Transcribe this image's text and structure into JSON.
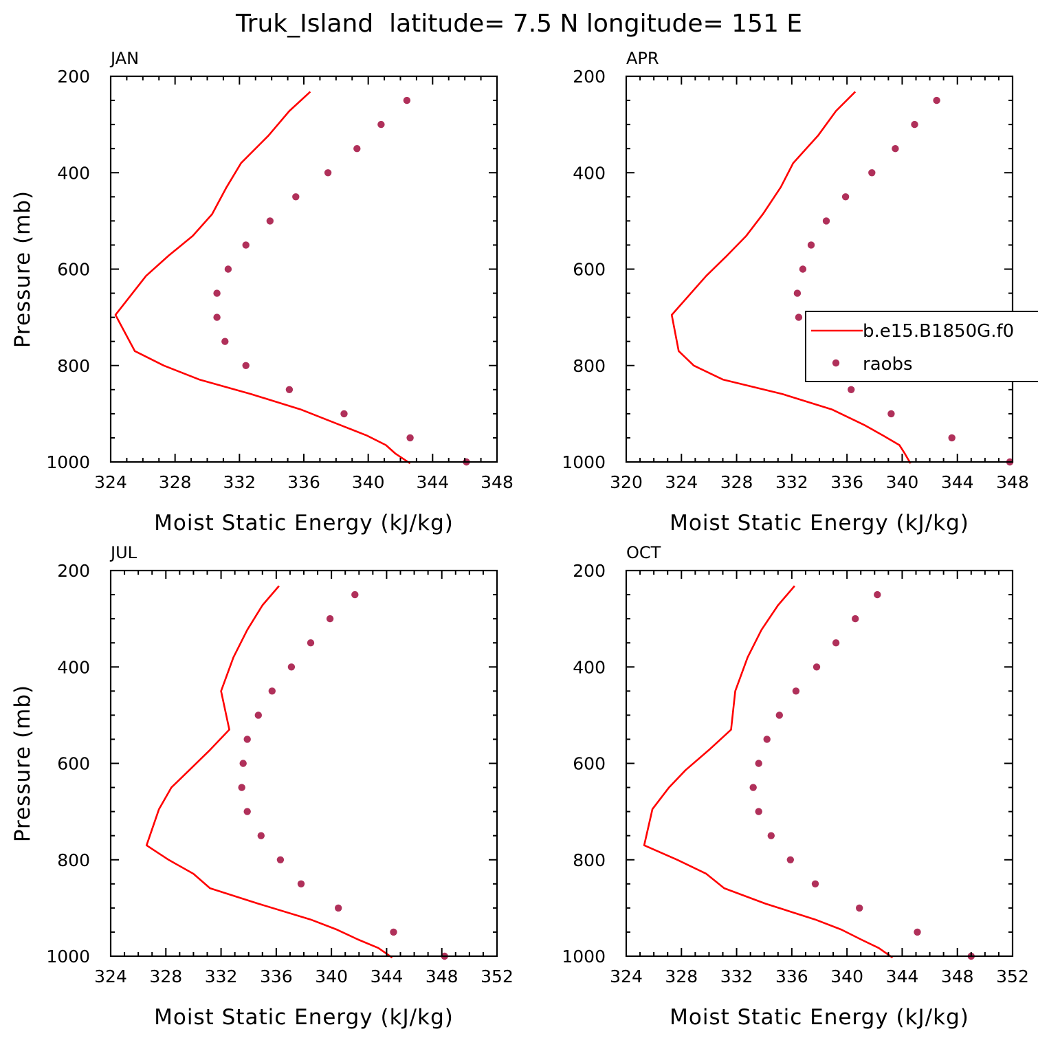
{
  "figure": {
    "title": "Truk_Island  latitude= 7.5 N longitude= 151 E"
  },
  "colors": {
    "model": "#ff0000",
    "obs": "#b0305a",
    "axis": "#000000"
  },
  "legend": {
    "placement": "right-middle of APR panel",
    "entries": [
      {
        "label": "b.e15.B1850G.f0",
        "marker": "line"
      },
      {
        "label": "raobs",
        "marker": "dot"
      }
    ]
  },
  "chart_data": [
    {
      "type": "line",
      "panel": "JAN",
      "title": "JAN",
      "xlabel": "Moist Static Energy (kJ/kg)",
      "ylabel": "Pressure (mb)",
      "xlim": [
        324,
        348
      ],
      "ylim": [
        1000,
        200
      ],
      "xticks": [
        324,
        328,
        332,
        336,
        340,
        344,
        348
      ],
      "yticks": [
        200,
        400,
        600,
        800,
        1000
      ],
      "series": [
        {
          "name": "b.e15.B1850G.f0",
          "kind": "line",
          "x": [
            336.4,
            335.1,
            333.8,
            332.1,
            331.2,
            330.3,
            329.1,
            327.6,
            326.2,
            324.3,
            325.5,
            327.3,
            329.5,
            332.7,
            335.8,
            338.3,
            339.9,
            341.1,
            341.7,
            342.6
          ],
          "y": [
            232,
            272,
            323,
            380,
            430,
            486,
            531,
            572,
            614,
            695,
            770,
            800,
            829,
            859,
            891,
            924,
            945,
            965,
            983,
            1003
          ]
        },
        {
          "name": "raobs",
          "kind": "scatter",
          "x": [
            342.4,
            340.8,
            339.3,
            337.5,
            335.5,
            333.9,
            332.4,
            331.3,
            330.6,
            330.6,
            331.1,
            332.4,
            335.1,
            338.5,
            342.6,
            346.1
          ],
          "y": [
            250,
            300,
            350,
            400,
            450,
            500,
            550,
            600,
            650,
            700,
            750,
            800,
            850,
            900,
            950,
            1000
          ]
        }
      ]
    },
    {
      "type": "line",
      "panel": "APR",
      "title": "APR",
      "xlabel": "Moist Static Energy (kJ/kg)",
      "ylabel": "",
      "xlim": [
        320,
        348
      ],
      "ylim": [
        1000,
        200
      ],
      "xticks": [
        320,
        324,
        328,
        332,
        336,
        340,
        344,
        348
      ],
      "yticks": [
        200,
        400,
        600,
        800,
        1000
      ],
      "series": [
        {
          "name": "b.e15.B1850G.f0",
          "kind": "line",
          "x": [
            336.6,
            335.2,
            333.9,
            332.1,
            331.2,
            329.9,
            328.7,
            327.3,
            325.8,
            323.3,
            323.8,
            324.9,
            327.0,
            331.3,
            334.9,
            337.3,
            338.6,
            339.8,
            340.2,
            340.6
          ],
          "y": [
            232,
            272,
            323,
            380,
            430,
            486,
            531,
            572,
            614,
            695,
            770,
            800,
            829,
            859,
            891,
            924,
            945,
            965,
            983,
            1003
          ]
        },
        {
          "name": "raobs",
          "kind": "scatter",
          "x": [
            342.5,
            340.9,
            339.5,
            337.8,
            335.9,
            334.5,
            333.4,
            332.8,
            332.4,
            332.5,
            333.3,
            334.6,
            336.3,
            339.2,
            343.6,
            347.8
          ],
          "y": [
            250,
            300,
            350,
            400,
            450,
            500,
            550,
            600,
            650,
            700,
            750,
            800,
            850,
            900,
            950,
            1000
          ]
        }
      ]
    },
    {
      "type": "line",
      "panel": "JUL",
      "title": "JUL",
      "xlabel": "Moist Static Energy (kJ/kg)",
      "ylabel": "Pressure (mb)",
      "xlim": [
        324,
        352
      ],
      "ylim": [
        1000,
        200
      ],
      "xticks": [
        324,
        328,
        332,
        336,
        340,
        344,
        348,
        352
      ],
      "yticks": [
        200,
        400,
        600,
        800,
        1000
      ],
      "series": [
        {
          "name": "b.e15.B1850G.f0",
          "kind": "line",
          "x": [
            336.2,
            335.0,
            333.9,
            332.9,
            332.0,
            332.6,
            331.2,
            329.7,
            328.4,
            327.5,
            326.6,
            328.2,
            330.0,
            331.2,
            334.7,
            338.5,
            340.4,
            341.9,
            343.4,
            344.4
          ],
          "y": [
            232,
            272,
            323,
            380,
            450,
            530,
            572,
            614,
            650,
            695,
            770,
            800,
            829,
            859,
            891,
            924,
            945,
            965,
            983,
            1003
          ]
        },
        {
          "name": "raobs",
          "kind": "scatter",
          "x": [
            341.7,
            339.9,
            338.5,
            337.1,
            335.7,
            334.7,
            333.9,
            333.6,
            333.5,
            333.9,
            334.9,
            336.3,
            337.8,
            340.5,
            344.5,
            348.2
          ],
          "y": [
            250,
            300,
            350,
            400,
            450,
            500,
            550,
            600,
            650,
            700,
            750,
            800,
            850,
            900,
            950,
            1000
          ]
        }
      ]
    },
    {
      "type": "line",
      "panel": "OCT",
      "title": "OCT",
      "xlabel": "Moist Static Energy (kJ/kg)",
      "ylabel": "",
      "xlim": [
        324,
        352
      ],
      "ylim": [
        1000,
        200
      ],
      "xticks": [
        324,
        328,
        332,
        336,
        340,
        344,
        348,
        352
      ],
      "yticks": [
        200,
        400,
        600,
        800,
        1000
      ],
      "series": [
        {
          "name": "b.e15.B1850G.f0",
          "kind": "line",
          "x": [
            336.2,
            335.0,
            333.8,
            332.8,
            331.9,
            331.6,
            330.0,
            328.3,
            327.1,
            325.9,
            325.3,
            327.7,
            329.8,
            331.1,
            334.1,
            337.7,
            339.6,
            341.0,
            342.3,
            343.3
          ],
          "y": [
            232,
            272,
            323,
            380,
            450,
            530,
            572,
            614,
            650,
            695,
            770,
            800,
            829,
            859,
            891,
            924,
            945,
            965,
            983,
            1003
          ]
        },
        {
          "name": "raobs",
          "kind": "scatter",
          "x": [
            342.2,
            340.6,
            339.2,
            337.8,
            336.3,
            335.1,
            334.2,
            333.6,
            333.2,
            333.6,
            334.5,
            335.9,
            337.7,
            340.9,
            345.1,
            349.0
          ],
          "y": [
            250,
            300,
            350,
            400,
            450,
            500,
            550,
            600,
            650,
            700,
            750,
            800,
            850,
            900,
            950,
            1000
          ]
        }
      ]
    }
  ]
}
